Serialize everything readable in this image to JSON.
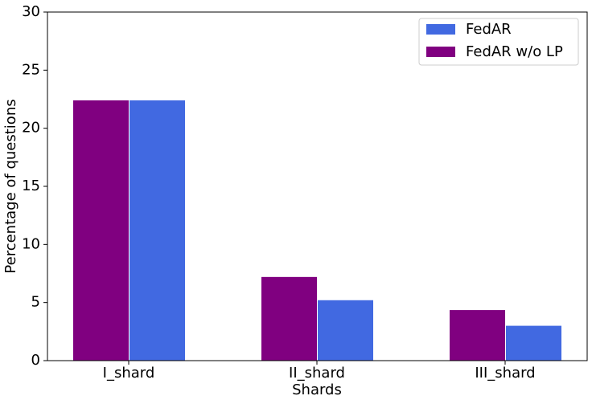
{
  "chart_data": {
    "type": "bar",
    "xlabel": "Shards",
    "ylabel": "Percentage of questions",
    "categories": [
      "I_shard",
      "II_shard",
      "III_shard"
    ],
    "series": [
      {
        "name": "FedAR",
        "color": "#4169e1",
        "values": [
          22.4,
          5.2,
          3.0
        ]
      },
      {
        "name": "FedAR w/o LP",
        "color": "#800080",
        "values": [
          22.4,
          7.2,
          4.35
        ]
      }
    ],
    "ylim": [
      0,
      30
    ],
    "yticks": [
      0,
      5,
      10,
      15,
      20,
      25,
      30
    ],
    "legend": "upper right",
    "grid": false
  }
}
